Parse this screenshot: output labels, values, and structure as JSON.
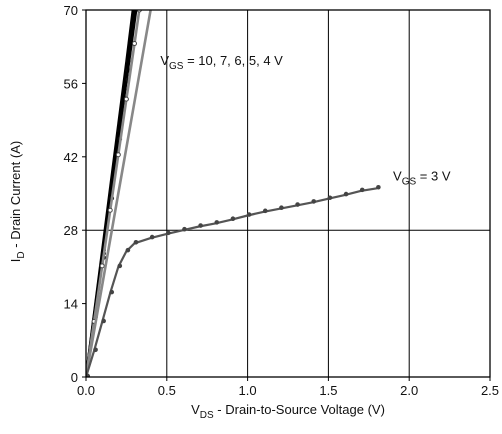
{
  "chart_data": {
    "type": "line",
    "title": "",
    "xlabel": {
      "prefix": "V",
      "sub": "DS",
      "suffix": " - Drain-to-Source Voltage (V)"
    },
    "ylabel": {
      "prefix": "I",
      "sub": "D",
      "suffix": " - Drain Current (A)"
    },
    "xlim": [
      0,
      2.5
    ],
    "ylim": [
      0,
      70
    ],
    "xticks": [
      "0.0",
      "0.5",
      "1.0",
      "1.5",
      "2.0",
      "2.5"
    ],
    "xtick_values": [
      0,
      0.5,
      1.0,
      1.5,
      2.0,
      2.5
    ],
    "yticks": [
      "0",
      "14",
      "28",
      "42",
      "56",
      "70"
    ],
    "ytick_values": [
      0,
      14,
      28,
      42,
      56,
      70
    ],
    "grid": "vertical lines at each x tick, horizontal line at y = 28",
    "legend": "none",
    "annotations": [
      {
        "prefix": "V",
        "sub": "GS",
        "suffix": " = 10, 7, 6, 5, 4 V",
        "at": [
          0.46,
          59.5
        ]
      },
      {
        "prefix": "V",
        "sub": "GS",
        "suffix": " = 3 V",
        "at": [
          1.9,
          37.5
        ]
      }
    ],
    "series": [
      {
        "vgs": 10,
        "color": "#000000",
        "marker": "dot",
        "x": [
          0,
          0.05,
          0.1,
          0.15,
          0.2,
          0.25,
          0.29
        ],
        "y": [
          0,
          12,
          24,
          36,
          48,
          60,
          70
        ]
      },
      {
        "vgs": 7,
        "color": "#000000",
        "marker": "dot",
        "x": [
          0,
          0.05,
          0.1,
          0.15,
          0.2,
          0.25,
          0.3
        ],
        "y": [
          0,
          11.7,
          23.4,
          35,
          46.7,
          58.3,
          70
        ]
      },
      {
        "vgs": 6,
        "color": "#000000",
        "marker": "dot",
        "x": [
          0,
          0.05,
          0.1,
          0.15,
          0.2,
          0.25,
          0.31
        ],
        "y": [
          0,
          11.3,
          22.6,
          33.9,
          45.2,
          56.5,
          70
        ]
      },
      {
        "vgs": 5,
        "color": "#888888",
        "marker": "circle",
        "x": [
          0,
          0.05,
          0.1,
          0.15,
          0.2,
          0.25,
          0.3,
          0.33
        ],
        "y": [
          0,
          10.6,
          21.2,
          31.8,
          42.4,
          53,
          63.6,
          70
        ]
      },
      {
        "vgs": 4,
        "color": "#888888",
        "marker": "none",
        "x": [
          0,
          0.1,
          0.2,
          0.3,
          0.4
        ],
        "y": [
          0,
          17.5,
          35,
          52.5,
          70
        ]
      },
      {
        "vgs": 3,
        "color": "#555555",
        "marker": "dot",
        "x": [
          0,
          0.05,
          0.1,
          0.15,
          0.2,
          0.25,
          0.3,
          0.4,
          0.5,
          0.6,
          0.7,
          0.8,
          0.9,
          1.0,
          1.1,
          1.2,
          1.3,
          1.4,
          1.5,
          1.6,
          1.7,
          1.8
        ],
        "y": [
          0,
          5,
          10.5,
          16,
          21,
          24,
          25.5,
          26.5,
          27.3,
          28,
          28.7,
          29.3,
          30,
          30.8,
          31.5,
          32.1,
          32.7,
          33.3,
          34,
          34.7,
          35.5,
          36
        ]
      }
    ]
  }
}
